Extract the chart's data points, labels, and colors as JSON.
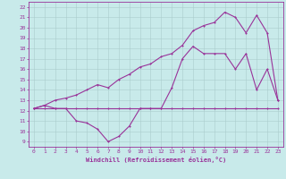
{
  "bg_color": "#c8eaea",
  "line_color": "#993399",
  "grid_color": "#aacccc",
  "xlabel": "Windchill (Refroidissement éolien,°C)",
  "xlim": [
    -0.5,
    23.5
  ],
  "ylim": [
    8.5,
    22.5
  ],
  "xticks": [
    0,
    1,
    2,
    3,
    4,
    5,
    6,
    7,
    8,
    9,
    10,
    11,
    12,
    13,
    14,
    15,
    16,
    17,
    18,
    19,
    20,
    21,
    22,
    23
  ],
  "yticks": [
    9,
    10,
    11,
    12,
    13,
    14,
    15,
    16,
    17,
    18,
    19,
    20,
    21,
    22
  ],
  "line1_x": [
    0,
    1,
    2,
    3,
    4,
    5,
    6,
    7,
    8,
    9,
    10,
    11,
    12,
    13,
    14,
    15,
    16,
    17,
    18,
    19,
    20,
    21,
    22,
    23
  ],
  "line1_y": [
    12.2,
    12.2,
    12.2,
    12.2,
    12.2,
    12.2,
    12.2,
    12.2,
    12.2,
    12.2,
    12.2,
    12.2,
    12.2,
    12.2,
    12.2,
    12.2,
    12.2,
    12.2,
    12.2,
    12.2,
    12.2,
    12.2,
    12.2,
    12.2
  ],
  "line2_x": [
    0,
    1,
    2,
    3,
    4,
    5,
    6,
    7,
    8,
    9,
    10,
    11,
    12,
    13,
    14,
    15,
    16,
    17,
    18,
    19,
    20,
    21,
    22,
    23
  ],
  "line2_y": [
    12.2,
    12.5,
    12.2,
    12.2,
    11.0,
    10.8,
    10.2,
    9.0,
    9.5,
    10.5,
    12.2,
    12.2,
    12.2,
    14.2,
    17.0,
    18.2,
    17.5,
    17.5,
    17.5,
    16.0,
    17.5,
    14.0,
    16.0,
    13.0
  ],
  "line3_x": [
    0,
    1,
    2,
    3,
    4,
    5,
    6,
    7,
    8,
    9,
    10,
    11,
    12,
    13,
    14,
    15,
    16,
    17,
    18,
    19,
    20,
    21,
    22,
    23
  ],
  "line3_y": [
    12.2,
    12.5,
    13.0,
    13.2,
    13.5,
    14.0,
    14.5,
    14.2,
    15.0,
    15.5,
    16.2,
    16.5,
    17.2,
    17.5,
    18.3,
    19.7,
    20.2,
    20.5,
    21.5,
    21.0,
    19.5,
    21.2,
    19.5,
    13.0
  ]
}
